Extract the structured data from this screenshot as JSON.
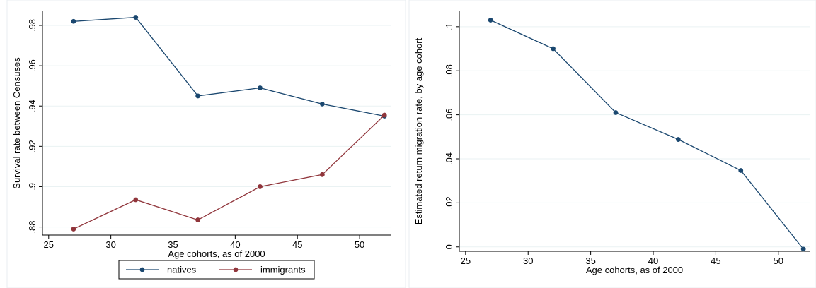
{
  "chart_data": [
    {
      "type": "line",
      "xlabel": "Age cohorts, as of 2000",
      "ylabel": "Survival rate between Censuses",
      "xlim": [
        24.5,
        52.5
      ],
      "ylim": [
        0.876,
        0.987
      ],
      "xticks": [
        25,
        30,
        35,
        40,
        45,
        50
      ],
      "xtick_labels": [
        "25",
        "30",
        "35",
        "40",
        "45",
        "50"
      ],
      "yticks": [
        0.88,
        0.9,
        0.92,
        0.94,
        0.96,
        0.98
      ],
      "ytick_labels": [
        ".88",
        ".9",
        ".92",
        ".94",
        ".96",
        ".98"
      ],
      "grid": true,
      "legend": "bottom",
      "x": [
        27,
        32,
        37,
        42,
        47,
        52
      ],
      "series": [
        {
          "name": "natives",
          "color": "#1a476f",
          "values": [
            0.982,
            0.984,
            0.945,
            0.949,
            0.941,
            0.935
          ]
        },
        {
          "name": "immigrants",
          "color": "#90353b",
          "values": [
            0.879,
            0.8935,
            0.8835,
            0.9,
            0.906,
            0.9355
          ]
        }
      ]
    },
    {
      "type": "line",
      "xlabel": "Age cohorts, as of 2000",
      "ylabel": "Estimated return migration rate, by age cohort",
      "xlim": [
        24.5,
        52.5
      ],
      "ylim": [
        -0.002,
        0.107
      ],
      "xticks": [
        25,
        30,
        35,
        40,
        45,
        50
      ],
      "xtick_labels": [
        "25",
        "30",
        "35",
        "40",
        "45",
        "50"
      ],
      "yticks": [
        0,
        0.02,
        0.04,
        0.06,
        0.08,
        0.1
      ],
      "ytick_labels": [
        "0",
        ".02",
        ".04",
        ".06",
        ".08",
        ".1"
      ],
      "grid": true,
      "x": [
        27,
        32,
        37,
        42,
        47,
        52
      ],
      "series": [
        {
          "color": "#1a476f",
          "values": [
            0.103,
            0.09,
            0.061,
            0.0488,
            0.0347,
            -0.001
          ]
        }
      ]
    }
  ]
}
